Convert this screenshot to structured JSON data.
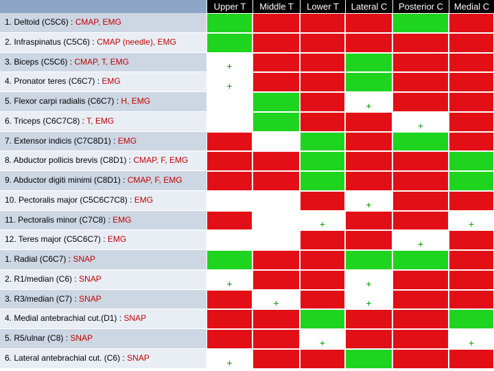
{
  "colors": {
    "green": "#1ed41e",
    "red": "#e30f16",
    "white": "#ffffff",
    "label_dark": "#cdd6e3",
    "label_light": "#e9eef5",
    "header_bg": "#000000",
    "header_blank": "#8da6c6",
    "test_text": "#c00000"
  },
  "columns": [
    "Upper T",
    "Middle T",
    "Lower T",
    "Lateral C",
    "Posterior C",
    "Medial C"
  ],
  "rows": [
    {
      "name": "1. Deltoid (C5C6) :",
      "test": "CMAP, EMG",
      "cells": [
        {
          "c": "G",
          "m": ""
        },
        {
          "c": "R",
          "m": ""
        },
        {
          "c": "R",
          "m": ""
        },
        {
          "c": "R",
          "m": ""
        },
        {
          "c": "G",
          "m": ""
        },
        {
          "c": "R",
          "m": ""
        }
      ]
    },
    {
      "name": "2. Infraspinatus (C5C6) :",
      "test": "CMAP (needle), EMG",
      "cells": [
        {
          "c": "G",
          "m": ""
        },
        {
          "c": "R",
          "m": ""
        },
        {
          "c": "R",
          "m": ""
        },
        {
          "c": "R",
          "m": ""
        },
        {
          "c": "R",
          "m": ""
        },
        {
          "c": "R",
          "m": ""
        }
      ]
    },
    {
      "name": "3. Biceps (C5C6) :",
      "test": "CMAP, T, EMG",
      "cells": [
        {
          "c": "W",
          "m": "+"
        },
        {
          "c": "R",
          "m": ""
        },
        {
          "c": "R",
          "m": ""
        },
        {
          "c": "G",
          "m": ""
        },
        {
          "c": "R",
          "m": ""
        },
        {
          "c": "R",
          "m": ""
        }
      ]
    },
    {
      "name": "4. Pronator teres (C6C7) :",
      "test": "EMG",
      "cells": [
        {
          "c": "W",
          "m": "+"
        },
        {
          "c": "R",
          "m": ""
        },
        {
          "c": "R",
          "m": ""
        },
        {
          "c": "G",
          "m": ""
        },
        {
          "c": "R",
          "m": ""
        },
        {
          "c": "R",
          "m": ""
        }
      ]
    },
    {
      "name": "5. Flexor carpi radialis (C6C7) :",
      "test": "H, EMG",
      "cells": [
        {
          "c": "W",
          "m": ""
        },
        {
          "c": "G",
          "m": ""
        },
        {
          "c": "R",
          "m": ""
        },
        {
          "c": "W",
          "m": "+"
        },
        {
          "c": "R",
          "m": ""
        },
        {
          "c": "R",
          "m": ""
        }
      ]
    },
    {
      "name": "6. Triceps (C6C7C8) :",
      "test": "T, EMG",
      "cells": [
        {
          "c": "W",
          "m": ""
        },
        {
          "c": "G",
          "m": ""
        },
        {
          "c": "R",
          "m": ""
        },
        {
          "c": "R",
          "m": ""
        },
        {
          "c": "W",
          "m": "+"
        },
        {
          "c": "R",
          "m": ""
        }
      ]
    },
    {
      "name": "7. Extensor indicis (C7C8D1) :",
      "test": "EMG",
      "cells": [
        {
          "c": "R",
          "m": ""
        },
        {
          "c": "W",
          "m": ""
        },
        {
          "c": "G",
          "m": ""
        },
        {
          "c": "R",
          "m": ""
        },
        {
          "c": "G",
          "m": ""
        },
        {
          "c": "R",
          "m": ""
        }
      ]
    },
    {
      "name": "8. Abductor pollicis brevis (C8D1) :",
      "test": "CMAP, F, EMG",
      "cells": [
        {
          "c": "R",
          "m": ""
        },
        {
          "c": "R",
          "m": ""
        },
        {
          "c": "G",
          "m": ""
        },
        {
          "c": "R",
          "m": ""
        },
        {
          "c": "R",
          "m": ""
        },
        {
          "c": "G",
          "m": ""
        }
      ]
    },
    {
      "name": "9. Abductor digiti minimi (C8D1) :",
      "test": "CMAP, F, EMG",
      "cells": [
        {
          "c": "R",
          "m": ""
        },
        {
          "c": "R",
          "m": ""
        },
        {
          "c": "G",
          "m": ""
        },
        {
          "c": "R",
          "m": ""
        },
        {
          "c": "R",
          "m": ""
        },
        {
          "c": "G",
          "m": ""
        }
      ]
    },
    {
      "name": "10. Pectoralis major (C5C6C7C8) :",
      "test": "EMG",
      "cells": [
        {
          "c": "W",
          "m": ""
        },
        {
          "c": "W",
          "m": ""
        },
        {
          "c": "R",
          "m": ""
        },
        {
          "c": "W",
          "m": "+"
        },
        {
          "c": "R",
          "m": ""
        },
        {
          "c": "R",
          "m": ""
        }
      ]
    },
    {
      "name": "11. Pectoralis minor (C7C8) :",
      "test": "EMG",
      "cells": [
        {
          "c": "R",
          "m": ""
        },
        {
          "c": "W",
          "m": ""
        },
        {
          "c": "W",
          "m": "+"
        },
        {
          "c": "R",
          "m": ""
        },
        {
          "c": "R",
          "m": ""
        },
        {
          "c": "W",
          "m": "+"
        }
      ]
    },
    {
      "name": "12. Teres major (C5C6C7) :",
      "test": "EMG",
      "cells": [
        {
          "c": "W",
          "m": ""
        },
        {
          "c": "W",
          "m": ""
        },
        {
          "c": "R",
          "m": ""
        },
        {
          "c": "R",
          "m": ""
        },
        {
          "c": "W",
          "m": "+"
        },
        {
          "c": "R",
          "m": ""
        }
      ]
    },
    {
      "name": "1. Radial (C6C7) :",
      "test": "SNAP",
      "cells": [
        {
          "c": "G",
          "m": ""
        },
        {
          "c": "R",
          "m": ""
        },
        {
          "c": "R",
          "m": ""
        },
        {
          "c": "G",
          "m": ""
        },
        {
          "c": "G",
          "m": ""
        },
        {
          "c": "R",
          "m": ""
        }
      ]
    },
    {
      "name": "2. R1/median (C6) :",
      "test": "SNAP",
      "cells": [
        {
          "c": "W",
          "m": "+"
        },
        {
          "c": "R",
          "m": ""
        },
        {
          "c": "R",
          "m": ""
        },
        {
          "c": "W",
          "m": "+"
        },
        {
          "c": "R",
          "m": ""
        },
        {
          "c": "R",
          "m": ""
        }
      ]
    },
    {
      "name": "3. R3/median (C7) :",
      "test": "SNAP",
      "cells": [
        {
          "c": "R",
          "m": ""
        },
        {
          "c": "W",
          "m": "+"
        },
        {
          "c": "R",
          "m": ""
        },
        {
          "c": "W",
          "m": "+"
        },
        {
          "c": "R",
          "m": ""
        },
        {
          "c": "R",
          "m": ""
        }
      ]
    },
    {
      "name": "4. Medial antebrachial cut.(D1) :",
      "test": "SNAP",
      "cells": [
        {
          "c": "R",
          "m": ""
        },
        {
          "c": "R",
          "m": ""
        },
        {
          "c": "G",
          "m": ""
        },
        {
          "c": "R",
          "m": ""
        },
        {
          "c": "R",
          "m": ""
        },
        {
          "c": "G",
          "m": ""
        }
      ]
    },
    {
      "name": "5. R5/ulnar (C8) :",
      "test": "SNAP",
      "cells": [
        {
          "c": "R",
          "m": ""
        },
        {
          "c": "R",
          "m": ""
        },
        {
          "c": "W",
          "m": "+"
        },
        {
          "c": "R",
          "m": ""
        },
        {
          "c": "R",
          "m": ""
        },
        {
          "c": "W",
          "m": "+"
        }
      ]
    },
    {
      "name": "6. Lateral antebrachial cut. (C6) :",
      "test": "SNAP",
      "cells": [
        {
          "c": "W",
          "m": "+"
        },
        {
          "c": "R",
          "m": ""
        },
        {
          "c": "R",
          "m": ""
        },
        {
          "c": "G",
          "m": ""
        },
        {
          "c": "R",
          "m": ""
        },
        {
          "c": "R",
          "m": ""
        }
      ]
    }
  ]
}
